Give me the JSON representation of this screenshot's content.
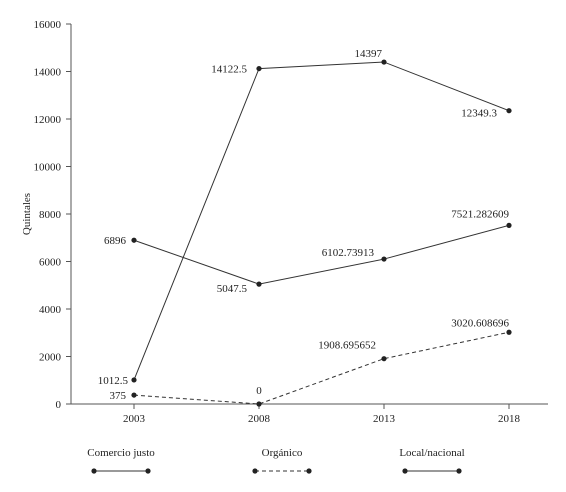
{
  "chart_data": {
    "type": "line",
    "title": "",
    "xlabel": "",
    "ylabel": "Quintales",
    "categories": [
      "2003",
      "2008",
      "2013",
      "2018"
    ],
    "ylim": [
      0,
      16000
    ],
    "yticks": [
      0,
      2000,
      4000,
      6000,
      8000,
      10000,
      12000,
      14000,
      16000
    ],
    "grid": false,
    "legend": "bottom",
    "series": [
      {
        "name": "Comercio justo",
        "style": "solid",
        "values": [
          1012.5,
          14122.5,
          14397,
          12349.3
        ],
        "labels": [
          "1012.5",
          "14122.5",
          "14397",
          "12349.3"
        ]
      },
      {
        "name": "Orgánico",
        "style": "dashed",
        "values": [
          375,
          0,
          1908.695652,
          3020.608696
        ],
        "labels": [
          "375",
          "0",
          "1908.695652",
          "3020.608696"
        ]
      },
      {
        "name": "Local/nacional",
        "style": "solid",
        "values": [
          6896,
          5047.5,
          6102.73913,
          7521.282609
        ],
        "labels": [
          "6896",
          "5047.5",
          "6102.73913",
          "7521.282609"
        ]
      }
    ],
    "colors": {
      "line": "#333333",
      "axis": "#555555",
      "marker": "#222222"
    }
  }
}
